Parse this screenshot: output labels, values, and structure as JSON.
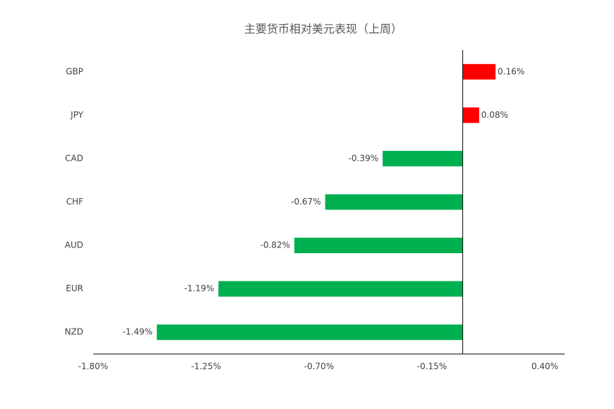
{
  "chart_data": {
    "type": "hbar",
    "title": "主要货币相对美元表现（上周）",
    "categories": [
      "GBP",
      "JPY",
      "CAD",
      "CHF",
      "AUD",
      "EUR",
      "NZD"
    ],
    "values": [
      0.16,
      0.08,
      -0.39,
      -0.67,
      -0.82,
      -1.19,
      -1.49
    ],
    "value_labels": [
      "0.16%",
      "0.08%",
      "-0.39%",
      "-0.67%",
      "-0.82%",
      "-1.19%",
      "-1.49%"
    ],
    "colors": [
      "#ff0000",
      "#ff0000",
      "#00b050",
      "#00b050",
      "#00b050",
      "#00b050",
      "#00b050"
    ],
    "xlim": [
      -1.8,
      0.4
    ],
    "xticks": [
      {
        "value": -1.8,
        "label": "-1.80%"
      },
      {
        "value": -1.25,
        "label": "-1.25%"
      },
      {
        "value": -0.7,
        "label": "-0.70%"
      },
      {
        "value": -0.15,
        "label": "-0.15%"
      },
      {
        "value": 0.4,
        "label": "0.40%"
      }
    ],
    "grid": false
  }
}
